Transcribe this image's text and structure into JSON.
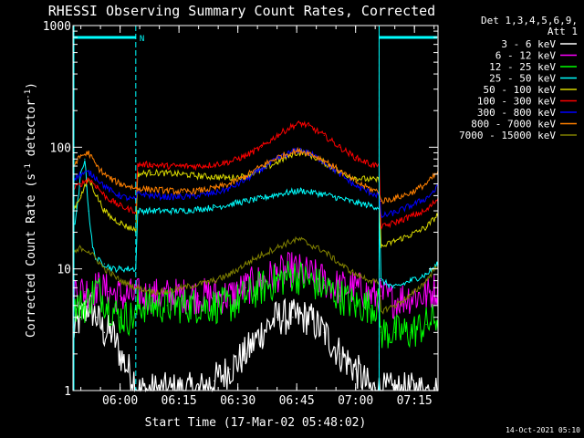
{
  "chart_data": {
    "type": "line",
    "title": "RHESSI Observing Summary Count Rates, Corrected",
    "ylabel_main": "Corrected Count Rate (s",
    "ylabel_sup1": "-1",
    "ylabel_mid": " detector",
    "ylabel_sup2": "-1",
    "ylabel_end": ")",
    "xlabel": "Start Time (17-Mar-02 05:48:02)",
    "x_unit": "minutes after 05:48:02",
    "xlim": [
      0,
      93
    ],
    "ylim": [
      1,
      1000
    ],
    "y_scale": "log",
    "y_ticks": [
      {
        "value": 1,
        "label": "1"
      },
      {
        "value": 10,
        "label": "10"
      },
      {
        "value": 100,
        "label": "100"
      },
      {
        "value": 1000,
        "label": "1000"
      }
    ],
    "x_ticks": [
      {
        "value": 12,
        "label": "06:00"
      },
      {
        "value": 27,
        "label": "06:15"
      },
      {
        "value": 42,
        "label": "06:30"
      },
      {
        "value": 57,
        "label": "06:45"
      },
      {
        "value": 72,
        "label": "07:00"
      },
      {
        "value": 87,
        "label": "07:15"
      }
    ],
    "legend_header": [
      "Det 1,3,4,5,6,9,",
      "Att 1"
    ],
    "legend_position": "right",
    "night_marker": {
      "label": "N",
      "ranges": [
        [
          0,
          16
        ],
        [
          78,
          93
        ]
      ]
    },
    "boundaries": [
      16,
      78
    ],
    "series": [
      {
        "name": "3 - 6 keV",
        "color": "#ffffff",
        "x": [
          0,
          2,
          4,
          6,
          8,
          10,
          12,
          14,
          16,
          16.5,
          20,
          24,
          28,
          32,
          36,
          40,
          44,
          48,
          52,
          56,
          60,
          64,
          68,
          72,
          76,
          78,
          78.5,
          82,
          86,
          90,
          93
        ],
        "y": [
          3,
          4,
          5,
          4,
          3,
          3,
          2,
          1.5,
          1.2,
          1,
          1,
          1,
          1,
          1,
          1.2,
          1.5,
          2,
          3,
          4,
          4,
          4,
          3,
          2,
          1.5,
          1,
          1,
          1,
          1,
          1,
          1,
          1
        ]
      },
      {
        "name": "6 - 12 keV",
        "color": "#ff00ff",
        "x": [
          0,
          3,
          6,
          9,
          12,
          15,
          16,
          16.5,
          20,
          24,
          28,
          32,
          36,
          40,
          44,
          48,
          52,
          56,
          60,
          64,
          68,
          72,
          76,
          78,
          78.5,
          82,
          86,
          90,
          93
        ],
        "y": [
          7,
          6.5,
          7,
          6.5,
          6,
          6,
          6,
          6,
          6,
          6,
          6,
          6,
          6,
          6,
          7,
          8,
          9,
          10,
          9,
          8,
          7,
          7,
          6,
          6,
          6,
          5.5,
          6,
          6,
          7
        ]
      },
      {
        "name": "12 - 25 keV",
        "color": "#00ff00",
        "x": [
          0,
          3,
          6,
          9,
          12,
          15,
          16,
          16.5,
          20,
          24,
          28,
          32,
          36,
          40,
          44,
          48,
          52,
          56,
          60,
          64,
          68,
          72,
          76,
          78,
          78.5,
          82,
          86,
          90,
          93
        ],
        "y": [
          5,
          5,
          7,
          5,
          4,
          4,
          4,
          5,
          5,
          5,
          5,
          5,
          5,
          5,
          6,
          7,
          8,
          9,
          8,
          7,
          6,
          5,
          5,
          5,
          3,
          3,
          3,
          3.5,
          4
        ]
      },
      {
        "name": "25 - 50 keV",
        "color": "#00ffff",
        "x": [
          0,
          1,
          2,
          3,
          4,
          5,
          6,
          8,
          10,
          12,
          14,
          16,
          16.5,
          20,
          24,
          28,
          32,
          36,
          40,
          44,
          48,
          52,
          56,
          58,
          60,
          64,
          68,
          72,
          76,
          78,
          78.5,
          82,
          86,
          90,
          93
        ],
        "y": [
          20,
          30,
          60,
          80,
          30,
          15,
          12,
          11,
          10,
          10,
          10,
          10,
          30,
          30,
          30,
          30,
          31,
          32,
          34,
          36,
          38,
          41,
          43,
          44,
          43,
          41,
          38,
          35,
          33,
          32,
          8,
          7,
          8,
          9,
          11
        ]
      },
      {
        "name": "50 - 100 keV",
        "color": "#d8d800",
        "x": [
          0,
          2,
          4,
          6,
          8,
          10,
          12,
          14,
          16,
          16.5,
          20,
          24,
          28,
          32,
          36,
          40,
          44,
          48,
          52,
          56,
          58,
          60,
          64,
          68,
          72,
          76,
          78,
          78.5,
          82,
          86,
          90,
          93
        ],
        "y": [
          30,
          40,
          55,
          40,
          30,
          26,
          24,
          22,
          21,
          60,
          62,
          61,
          60,
          58,
          57,
          56,
          58,
          65,
          75,
          88,
          91,
          88,
          75,
          62,
          56,
          54,
          54,
          15,
          17,
          19,
          22,
          28
        ]
      },
      {
        "name": "100 - 300 keV",
        "color": "#ff0000",
        "x": [
          0,
          2,
          4,
          6,
          8,
          10,
          12,
          14,
          16,
          16.5,
          20,
          24,
          28,
          32,
          36,
          40,
          44,
          48,
          52,
          56,
          58,
          60,
          64,
          68,
          72,
          76,
          78,
          78.5,
          82,
          86,
          90,
          93
        ],
        "y": [
          45,
          50,
          55,
          48,
          40,
          36,
          33,
          31,
          30,
          72,
          72,
          70,
          70,
          70,
          72,
          76,
          85,
          100,
          125,
          150,
          157,
          150,
          125,
          100,
          82,
          72,
          70,
          22,
          24,
          27,
          30,
          38
        ]
      },
      {
        "name": "300 - 800 keV",
        "color": "#0000ff",
        "x": [
          0,
          2,
          4,
          6,
          8,
          10,
          12,
          14,
          16,
          16.5,
          20,
          24,
          28,
          32,
          36,
          40,
          44,
          48,
          52,
          56,
          58,
          60,
          64,
          68,
          72,
          76,
          78,
          78.5,
          82,
          86,
          90,
          93
        ],
        "y": [
          55,
          60,
          62,
          56,
          48,
          43,
          40,
          38,
          37,
          42,
          40,
          39,
          39,
          40,
          42,
          46,
          54,
          66,
          80,
          92,
          95,
          90,
          76,
          60,
          48,
          42,
          40,
          27,
          29,
          33,
          38,
          47
        ]
      },
      {
        "name": "800 - 7000 keV",
        "color": "#ff8000",
        "x": [
          0,
          2,
          4,
          6,
          8,
          10,
          12,
          14,
          16,
          16.5,
          20,
          24,
          28,
          32,
          36,
          40,
          44,
          48,
          52,
          56,
          58,
          60,
          64,
          68,
          72,
          76,
          78,
          78.5,
          82,
          86,
          90,
          93
        ],
        "y": [
          70,
          85,
          90,
          70,
          60,
          54,
          50,
          48,
          46,
          46,
          45,
          44,
          43,
          44,
          46,
          50,
          58,
          70,
          82,
          92,
          93,
          90,
          78,
          64,
          52,
          45,
          43,
          36,
          38,
          42,
          50,
          62
        ]
      },
      {
        "name": "7000 - 15000 keV",
        "color": "#808000",
        "x": [
          0,
          2,
          4,
          6,
          8,
          10,
          12,
          14,
          16,
          16.5,
          20,
          24,
          28,
          32,
          36,
          40,
          44,
          48,
          52,
          56,
          58,
          60,
          64,
          68,
          72,
          76,
          78,
          78.5,
          82,
          86,
          90,
          93
        ],
        "y": [
          13,
          15,
          14,
          12,
          10,
          9,
          8,
          7.5,
          7,
          7,
          6.5,
          6.5,
          7,
          7.5,
          8,
          9,
          11,
          13,
          15,
          17,
          17.5,
          16,
          14,
          11,
          9,
          8,
          7.5,
          4.5,
          5,
          6,
          8,
          11
        ]
      }
    ]
  },
  "footer": {
    "timestamp": "14-Oct-2021 05:10"
  }
}
